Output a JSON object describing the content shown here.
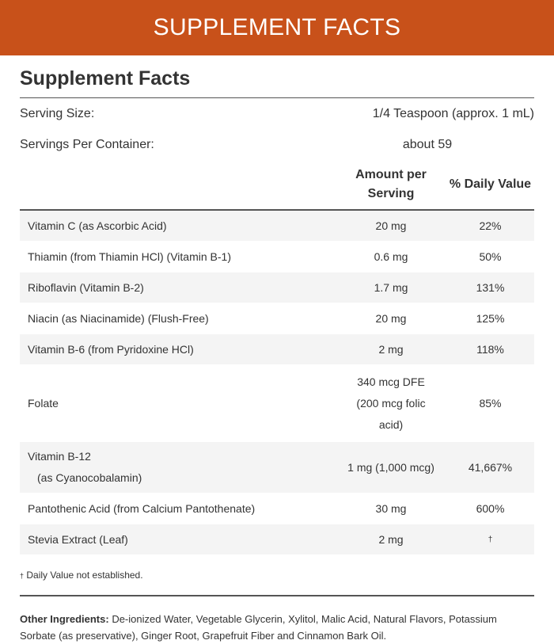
{
  "banner": {
    "title": "SUPPLEMENT FACTS"
  },
  "panel": {
    "title": "Supplement Facts",
    "serving_size_label": "Serving Size:",
    "serving_size_value": "1/4 Teaspoon (approx. 1 mL)",
    "servings_label": "Servings Per Container:",
    "servings_value": "about 59",
    "header": {
      "amount_line1": "Amount per",
      "amount_line2": "Serving",
      "daily_value": "% Daily Value"
    },
    "rows": [
      {
        "name": "Vitamin C (as Ascorbic Acid)",
        "amount": "20 mg",
        "dv": "22%"
      },
      {
        "name": "Thiamin (from Thiamin HCl) (Vitamin B-1)",
        "amount": "0.6 mg",
        "dv": "50%"
      },
      {
        "name": "Riboflavin (Vitamin B-2)",
        "amount": "1.7 mg",
        "dv": "131%"
      },
      {
        "name": "Niacin (as Niacinamide) (Flush-Free)",
        "amount": "20 mg",
        "dv": "125%"
      },
      {
        "name": "Vitamin B-6 (from Pyridoxine HCl)",
        "amount": "2 mg",
        "dv": "118%"
      },
      {
        "name": "Folate",
        "amount_line1": "340 mcg DFE",
        "amount_line2": "(200 mcg folic",
        "amount_line3": "acid)",
        "dv": "85%"
      },
      {
        "name_line1": "Vitamin B-12",
        "name_line2": "(as Cyanocobalamin)",
        "amount": "1 mg (1,000 mcg)",
        "dv": "41,667%"
      },
      {
        "name": "Pantothenic Acid (from Calcium Pantothenate)",
        "amount": "30 mg",
        "dv": "600%"
      },
      {
        "name": "Stevia Extract (Leaf)",
        "amount": "2 mg",
        "dv": "†"
      }
    ],
    "footnote_symbol": "†",
    "footnote_text": "Daily Value not established.",
    "other_label": "Other Ingredients:",
    "other_text": "De-ionized Water, Vegetable Glycerin, Xylitol, Malic Acid, Natural Flavors, Potassium Sorbate (as preservative), Ginger Root, Grapefruit Fiber and Cinnamon Bark Oil."
  },
  "colors": {
    "banner_bg": "#c8511a",
    "row_stripe": "#f4f4f4",
    "text": "#333333"
  }
}
